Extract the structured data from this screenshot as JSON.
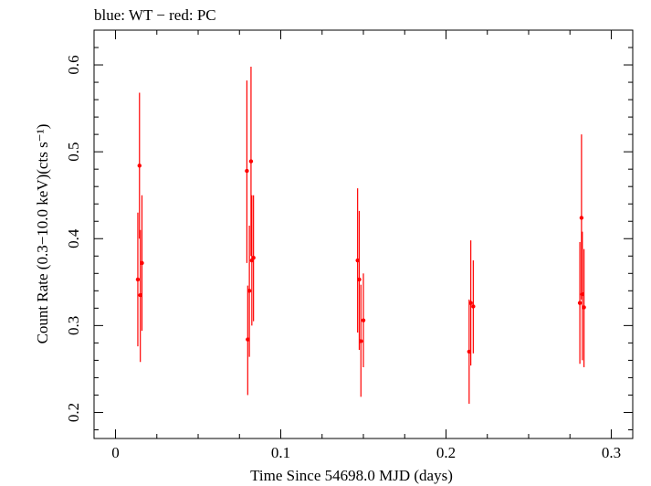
{
  "chart_data": {
    "type": "scatter",
    "title": "blue: WT − red: PC",
    "xlabel": "Time Since 54698.0 MJD (days)",
    "ylabel": "Count Rate (0.3−10.0 keV)(cts s⁻¹)",
    "xlim": [
      -0.013,
      0.313
    ],
    "ylim": [
      0.17,
      0.64
    ],
    "x_ticks": [
      0,
      0.1,
      0.2,
      0.3
    ],
    "x_tick_labels": [
      "0",
      "0.1",
      "0.2",
      "0.3"
    ],
    "y_ticks": [
      0.2,
      0.3,
      0.4,
      0.5,
      0.6
    ],
    "y_tick_labels": [
      "0.2",
      "0.3",
      "0.4",
      "0.5",
      "0.6"
    ],
    "grid": false,
    "series": [
      {
        "color": "#ff0000",
        "points": [
          {
            "x": 0.0135,
            "y": 0.353,
            "ylo": 0.276,
            "yhi": 0.43
          },
          {
            "x": 0.0145,
            "y": 0.484,
            "ylo": 0.4,
            "yhi": 0.568
          },
          {
            "x": 0.015,
            "y": 0.335,
            "ylo": 0.258,
            "yhi": 0.41
          },
          {
            "x": 0.016,
            "y": 0.372,
            "ylo": 0.294,
            "yhi": 0.45
          },
          {
            "x": 0.0795,
            "y": 0.478,
            "ylo": 0.372,
            "yhi": 0.582
          },
          {
            "x": 0.08,
            "y": 0.284,
            "ylo": 0.22,
            "yhi": 0.346
          },
          {
            "x": 0.081,
            "y": 0.34,
            "ylo": 0.264,
            "yhi": 0.415
          },
          {
            "x": 0.082,
            "y": 0.489,
            "ylo": 0.38,
            "yhi": 0.598
          },
          {
            "x": 0.0825,
            "y": 0.375,
            "ylo": 0.3,
            "yhi": 0.45
          },
          {
            "x": 0.0835,
            "y": 0.378,
            "ylo": 0.305,
            "yhi": 0.45
          },
          {
            "x": 0.1465,
            "y": 0.375,
            "ylo": 0.292,
            "yhi": 0.458
          },
          {
            "x": 0.1475,
            "y": 0.353,
            "ylo": 0.272,
            "yhi": 0.432
          },
          {
            "x": 0.1485,
            "y": 0.282,
            "ylo": 0.218,
            "yhi": 0.347
          },
          {
            "x": 0.15,
            "y": 0.306,
            "ylo": 0.252,
            "yhi": 0.36
          },
          {
            "x": 0.214,
            "y": 0.27,
            "ylo": 0.21,
            "yhi": 0.33
          },
          {
            "x": 0.215,
            "y": 0.326,
            "ylo": 0.254,
            "yhi": 0.398
          },
          {
            "x": 0.2165,
            "y": 0.322,
            "ylo": 0.268,
            "yhi": 0.375
          },
          {
            "x": 0.281,
            "y": 0.326,
            "ylo": 0.256,
            "yhi": 0.396
          },
          {
            "x": 0.282,
            "y": 0.424,
            "ylo": 0.33,
            "yhi": 0.52
          },
          {
            "x": 0.2825,
            "y": 0.336,
            "ylo": 0.26,
            "yhi": 0.408
          },
          {
            "x": 0.2835,
            "y": 0.321,
            "ylo": 0.252,
            "yhi": 0.388
          }
        ]
      }
    ]
  }
}
